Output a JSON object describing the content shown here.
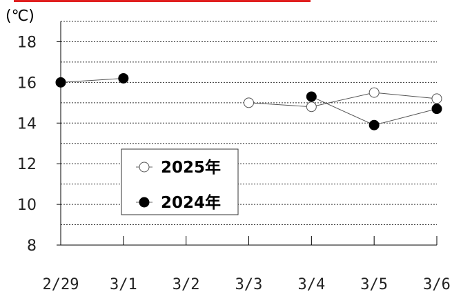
{
  "header_bar_color": "#e02020",
  "chart_data": {
    "type": "line",
    "unit_label": "(℃)",
    "categories": [
      "2/29",
      "3/1",
      "3/2",
      "3/3",
      "3/4",
      "3/5",
      "3/6"
    ],
    "ylim": [
      8,
      19
    ],
    "yticks": [
      8,
      10,
      12,
      14,
      16,
      18
    ],
    "grid": "dotted horizontal every 1",
    "legend_placement": "lower-left",
    "series": [
      {
        "name": "2025年",
        "marker": "open-circle",
        "values": [
          null,
          null,
          null,
          15.0,
          14.8,
          15.5,
          15.2
        ]
      },
      {
        "name": "2024年",
        "marker": "filled-circle",
        "values": [
          16.0,
          16.2,
          null,
          null,
          15.3,
          13.9,
          14.7
        ]
      }
    ]
  }
}
